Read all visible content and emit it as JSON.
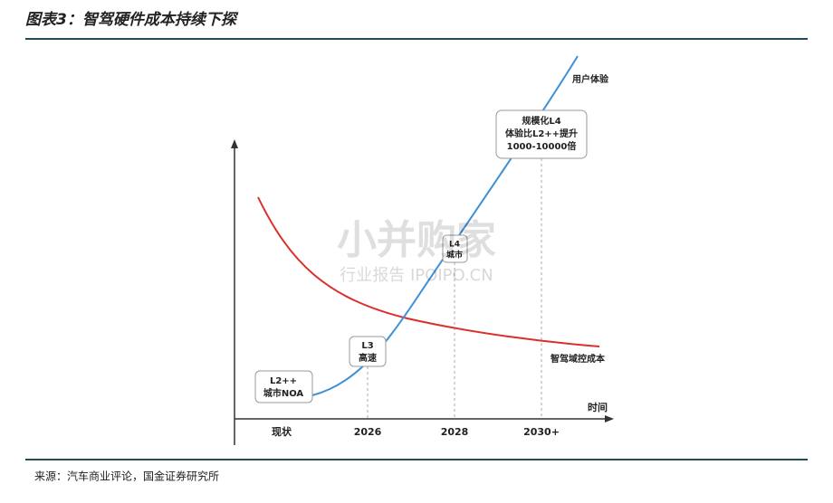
{
  "header": {
    "title": "图表3：智驾硬件成本持续下探"
  },
  "diagram": {
    "x_axis_title": "时间",
    "x_labels": [
      "现状",
      "2026",
      "2028",
      "2030+"
    ],
    "curves": {
      "experience": "用户体验",
      "cost": "智驾域控成本"
    },
    "callouts": [
      {
        "lines": [
          "L2++",
          "城市NOA"
        ]
      },
      {
        "lines": [
          "L3",
          "高速"
        ]
      },
      {
        "lines": [
          "L4",
          "城市"
        ]
      },
      {
        "lines": [
          "规模化L4",
          "体验比L2++提升",
          "1000-10000倍"
        ]
      }
    ],
    "watermark": {
      "main": "小并购家",
      "sub": "行业报告 IPOIPO.CN"
    }
  },
  "footer": {
    "source": "来源：汽车商业评论，国金证券研究所"
  }
}
